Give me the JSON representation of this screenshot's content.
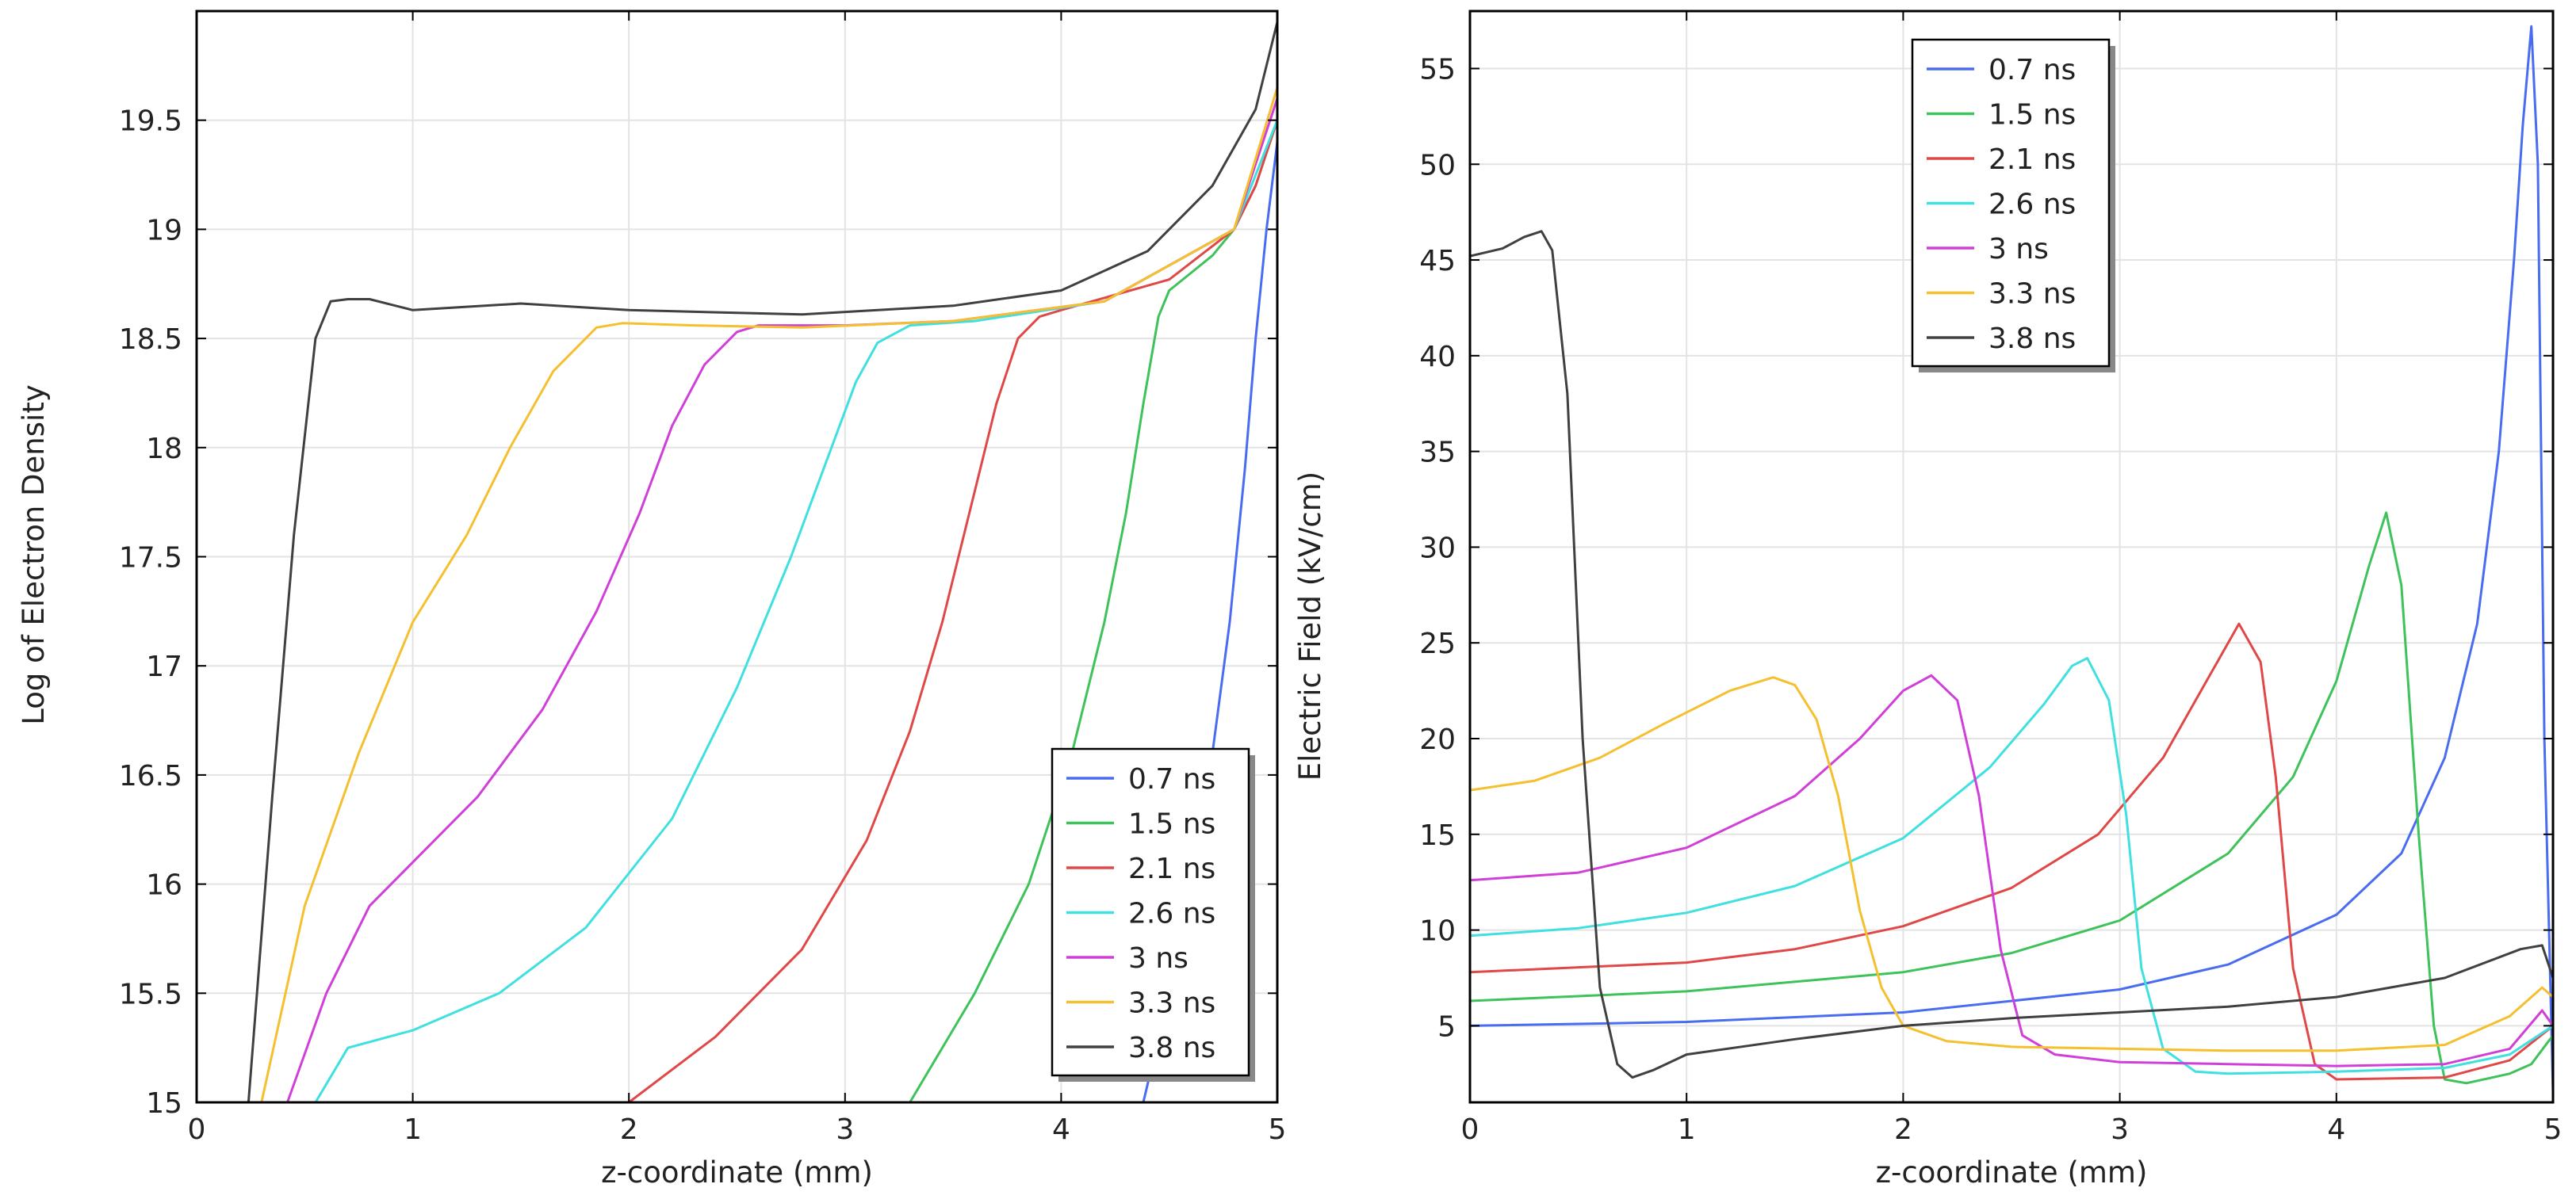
{
  "chart_data": [
    {
      "type": "line",
      "title": "",
      "xlabel": "z-coordinate (mm)",
      "ylabel": "Log of Electron Density",
      "xlim": [
        0,
        5
      ],
      "ylim": [
        15,
        20
      ],
      "grid": true,
      "legend_position": "bottom-right",
      "x_ticks": [
        0,
        1,
        2,
        3,
        4,
        5
      ],
      "x_tick_labels": [
        "0",
        "1",
        "2",
        "3",
        "4",
        "5"
      ],
      "y_ticks": [
        15,
        15.5,
        16,
        16.5,
        17,
        17.5,
        18,
        18.5,
        19,
        19.5
      ],
      "y_tick_labels": [
        "15",
        "15.5",
        "16",
        "16.5",
        "17",
        "17.5",
        "18",
        "18.5",
        "19",
        "19.5"
      ],
      "series": [
        {
          "name": "0.7 ns",
          "color": "#4a6cf0",
          "x": [
            4.38,
            4.5,
            4.6,
            4.7,
            4.78,
            4.85,
            4.9,
            4.95,
            5.0
          ],
          "y": [
            15.0,
            15.5,
            16.0,
            16.6,
            17.2,
            17.9,
            18.5,
            19.0,
            19.4
          ]
        },
        {
          "name": "1.5 ns",
          "color": "#3ec25a",
          "x": [
            3.3,
            3.6,
            3.85,
            4.05,
            4.2,
            4.3,
            4.38,
            4.45,
            4.5,
            4.6,
            4.7,
            4.8,
            4.9,
            5.0
          ],
          "y": [
            15.0,
            15.5,
            16.0,
            16.6,
            17.2,
            17.7,
            18.2,
            18.6,
            18.72,
            18.8,
            18.88,
            19.0,
            19.2,
            19.5
          ]
        },
        {
          "name": "2.1 ns",
          "color": "#e04848",
          "x": [
            2.0,
            2.4,
            2.8,
            3.1,
            3.3,
            3.45,
            3.6,
            3.7,
            3.8,
            3.9,
            4.0,
            4.5,
            4.8,
            4.9,
            5.0
          ],
          "y": [
            15.0,
            15.3,
            15.7,
            16.2,
            16.7,
            17.2,
            17.8,
            18.2,
            18.5,
            18.6,
            18.63,
            18.77,
            19.0,
            19.2,
            19.5
          ]
        },
        {
          "name": "2.6 ns",
          "color": "#40e0e0",
          "x": [
            0.55,
            0.7,
            1.0,
            1.4,
            1.8,
            2.2,
            2.5,
            2.75,
            2.9,
            3.05,
            3.15,
            3.3,
            3.6,
            4.2,
            4.8,
            5.0
          ],
          "y": [
            15.0,
            15.25,
            15.33,
            15.5,
            15.8,
            16.3,
            16.9,
            17.5,
            17.9,
            18.3,
            18.48,
            18.56,
            18.58,
            18.67,
            19.0,
            19.5
          ]
        },
        {
          "name": "3 ns",
          "color": "#d040d8",
          "x": [
            0.42,
            0.6,
            0.8,
            1.0,
            1.3,
            1.6,
            1.85,
            2.05,
            2.2,
            2.35,
            2.5,
            2.6,
            3.0,
            3.5,
            4.2,
            4.8,
            5.0
          ],
          "y": [
            15.0,
            15.5,
            15.9,
            16.1,
            16.4,
            16.8,
            17.25,
            17.7,
            18.1,
            18.38,
            18.53,
            18.56,
            18.56,
            18.58,
            18.67,
            19.0,
            19.6
          ]
        },
        {
          "name": "3.3 ns",
          "color": "#f5c030",
          "x": [
            0.3,
            0.5,
            0.75,
            1.0,
            1.25,
            1.45,
            1.65,
            1.85,
            1.97,
            2.3,
            2.8,
            3.5,
            4.2,
            4.8,
            5.0
          ],
          "y": [
            15.0,
            15.9,
            16.6,
            17.2,
            17.6,
            18.0,
            18.35,
            18.55,
            18.57,
            18.56,
            18.55,
            18.58,
            18.67,
            19.0,
            19.65
          ]
        },
        {
          "name": "3.8 ns",
          "color": "#404040",
          "x": [
            0.24,
            0.35,
            0.45,
            0.55,
            0.62,
            0.7,
            0.8,
            1.0,
            1.5,
            2.0,
            2.8,
            3.5,
            4.0,
            4.4,
            4.7,
            4.9,
            5.0
          ],
          "y": [
            15.0,
            16.4,
            17.6,
            18.5,
            18.67,
            18.68,
            18.68,
            18.63,
            18.66,
            18.63,
            18.61,
            18.65,
            18.72,
            18.9,
            19.2,
            19.55,
            19.95
          ]
        }
      ]
    },
    {
      "type": "line",
      "title": "",
      "xlabel": "z-coordinate (mm)",
      "ylabel": "Electric Field (kV/cm)",
      "xlim": [
        0,
        5
      ],
      "ylim": [
        1,
        58
      ],
      "grid": true,
      "legend_position": "top-center",
      "x_ticks": [
        0,
        1,
        2,
        3,
        4,
        5
      ],
      "x_tick_labels": [
        "0",
        "1",
        "2",
        "3",
        "4",
        "5"
      ],
      "y_ticks": [
        5,
        10,
        15,
        20,
        25,
        30,
        35,
        40,
        45,
        50,
        55
      ],
      "y_tick_labels": [
        "5",
        "10",
        "15",
        "20",
        "25",
        "30",
        "35",
        "40",
        "45",
        "50",
        "55"
      ],
      "series": [
        {
          "name": "0.7 ns",
          "color": "#4a6cf0",
          "x": [
            0,
            1,
            2,
            3,
            3.5,
            4.0,
            4.3,
            4.5,
            4.65,
            4.75,
            4.82,
            4.86,
            4.9,
            4.93,
            4.96,
            5.0
          ],
          "y": [
            5.0,
            5.2,
            5.7,
            6.9,
            8.2,
            10.8,
            14.0,
            19.0,
            26.0,
            35.0,
            45.0,
            52.0,
            57.2,
            50.0,
            20.0,
            1.5
          ]
        },
        {
          "name": "1.5 ns",
          "color": "#3ec25a",
          "x": [
            0,
            1,
            2,
            2.5,
            3.0,
            3.5,
            3.8,
            4.0,
            4.15,
            4.23,
            4.3,
            4.38,
            4.45,
            4.5,
            4.6,
            4.8,
            4.9,
            5.0
          ],
          "y": [
            6.3,
            6.8,
            7.8,
            8.8,
            10.5,
            14.0,
            18.0,
            23.0,
            29.0,
            31.8,
            28.0,
            15.0,
            5.0,
            2.2,
            2.0,
            2.5,
            3.0,
            4.5
          ]
        },
        {
          "name": "2.1 ns",
          "color": "#e04848",
          "x": [
            0,
            1,
            1.5,
            2.0,
            2.5,
            2.9,
            3.2,
            3.4,
            3.55,
            3.65,
            3.72,
            3.8,
            3.9,
            4.0,
            4.5,
            4.8,
            5.0
          ],
          "y": [
            7.8,
            8.3,
            9.0,
            10.2,
            12.2,
            15.0,
            19.0,
            23.0,
            26.0,
            24.0,
            18.0,
            8.0,
            3.0,
            2.2,
            2.3,
            3.2,
            5.0
          ]
        },
        {
          "name": "2.6 ns",
          "color": "#40e0e0",
          "x": [
            0,
            0.5,
            1.0,
            1.5,
            2.0,
            2.4,
            2.65,
            2.78,
            2.85,
            2.95,
            3.03,
            3.1,
            3.2,
            3.35,
            3.5,
            4.0,
            4.5,
            4.8,
            5.0
          ],
          "y": [
            9.7,
            10.1,
            10.9,
            12.3,
            14.8,
            18.5,
            21.8,
            23.8,
            24.2,
            22.0,
            16.0,
            8.0,
            3.8,
            2.6,
            2.5,
            2.6,
            2.8,
            3.5,
            5.0
          ]
        },
        {
          "name": "3 ns",
          "color": "#d040d8",
          "x": [
            0,
            0.5,
            1.0,
            1.5,
            1.8,
            2.0,
            2.13,
            2.25,
            2.35,
            2.45,
            2.55,
            2.7,
            3.0,
            3.5,
            4.0,
            4.5,
            4.8,
            4.95,
            5.0
          ],
          "y": [
            12.6,
            13.0,
            14.3,
            17.0,
            20.0,
            22.5,
            23.3,
            22.0,
            17.0,
            9.0,
            4.5,
            3.5,
            3.1,
            3.0,
            2.9,
            3.0,
            3.8,
            5.8,
            5.0
          ]
        },
        {
          "name": "3.3 ns",
          "color": "#f5c030",
          "x": [
            0,
            0.3,
            0.6,
            0.9,
            1.2,
            1.4,
            1.5,
            1.6,
            1.7,
            1.8,
            1.9,
            2.0,
            2.2,
            2.5,
            3.0,
            3.5,
            4.0,
            4.5,
            4.8,
            4.95,
            5.0
          ],
          "y": [
            17.3,
            17.8,
            19.0,
            20.8,
            22.5,
            23.2,
            22.8,
            21.0,
            17.0,
            11.0,
            7.0,
            5.0,
            4.2,
            3.9,
            3.8,
            3.7,
            3.7,
            4.0,
            5.5,
            7.0,
            6.5
          ]
        },
        {
          "name": "3.8 ns",
          "color": "#404040",
          "x": [
            0,
            0.15,
            0.25,
            0.33,
            0.38,
            0.45,
            0.52,
            0.6,
            0.68,
            0.75,
            0.85,
            1.0,
            1.5,
            2.0,
            2.5,
            3.0,
            3.5,
            4.0,
            4.5,
            4.85,
            4.95,
            5.0
          ],
          "y": [
            45.2,
            45.6,
            46.2,
            46.5,
            45.5,
            38.0,
            20.0,
            7.0,
            3.0,
            2.3,
            2.7,
            3.5,
            4.3,
            5.0,
            5.4,
            5.7,
            6.0,
            6.5,
            7.5,
            9.0,
            9.2,
            7.5
          ]
        }
      ]
    }
  ]
}
